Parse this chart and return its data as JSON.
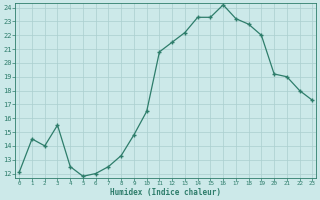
{
  "xlabel": "Humidex (Indice chaleur)",
  "ylabel": "",
  "x_values": [
    0,
    1,
    2,
    3,
    4,
    5,
    6,
    7,
    8,
    9,
    10,
    11,
    12,
    13,
    14,
    15,
    16,
    17,
    18,
    19,
    20,
    21,
    22,
    23
  ],
  "y_values": [
    12.1,
    14.5,
    14.0,
    15.5,
    12.5,
    11.8,
    12.0,
    12.5,
    13.3,
    14.8,
    16.5,
    20.8,
    21.5,
    22.2,
    23.3,
    23.3,
    24.2,
    23.2,
    22.8,
    22.0,
    19.2,
    19.0,
    18.0,
    17.3
  ],
  "xlim": [
    0,
    23
  ],
  "ylim": [
    12,
    24
  ],
  "yticks": [
    12,
    13,
    14,
    15,
    16,
    17,
    18,
    19,
    20,
    21,
    22,
    23,
    24
  ],
  "xticks": [
    0,
    1,
    2,
    3,
    4,
    5,
    6,
    7,
    8,
    9,
    10,
    11,
    12,
    13,
    14,
    15,
    16,
    17,
    18,
    19,
    20,
    21,
    22,
    23
  ],
  "line_color": "#2e7d6b",
  "marker_color": "#2e7d6b",
  "bg_color": "#cce9e9",
  "grid_color": "#aacfcf",
  "tick_label_color": "#2e7d6b",
  "xlabel_color": "#2e7d6b"
}
